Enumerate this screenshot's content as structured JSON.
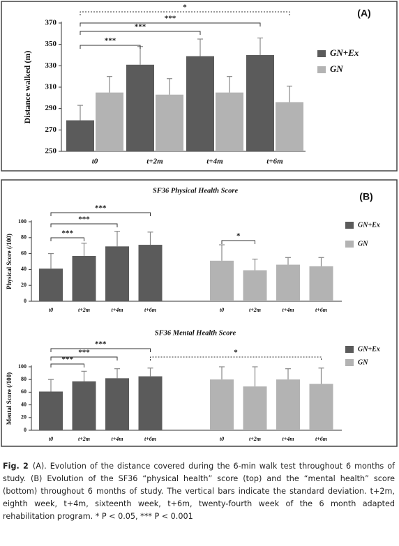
{
  "chart_data": [
    {
      "type": "bar",
      "panel": "(A)",
      "y_label": "Distance walked (m)",
      "categories": [
        "t0",
        "t+2m",
        "t+4m",
        "t+6m"
      ],
      "series": [
        {
          "name": "GN+Ex",
          "color": "#5b5b5b",
          "values": [
            279,
            331,
            339,
            340
          ],
          "errors": [
            14,
            17,
            16,
            16
          ]
        },
        {
          "name": "GN",
          "color": "#b3b3b3",
          "values": [
            305,
            303,
            305,
            296
          ],
          "errors": [
            15,
            15,
            15,
            15
          ]
        }
      ],
      "ylim": [
        250,
        370
      ],
      "yticks": [
        250,
        270,
        290,
        310,
        330,
        350,
        370
      ],
      "annotations": [
        "***",
        "***",
        "***",
        "*"
      ]
    },
    {
      "type": "bar",
      "panel": "(B)",
      "title": "SF36 Physical Health Score",
      "y_label": "Physical Score (/100)",
      "categories": [
        "t0",
        "t+2m",
        "t+4m",
        "t+6m",
        "t0",
        "t+2m",
        "t+4m",
        "t+6m"
      ],
      "series": [
        {
          "name": "GN+Ex",
          "color": "#5b5b5b",
          "values": [
            41,
            57,
            69,
            71,
            null,
            null,
            null,
            null
          ],
          "errors": [
            19,
            16,
            19,
            16,
            null,
            null,
            null,
            null
          ]
        },
        {
          "name": "GN",
          "color": "#b3b3b3",
          "values": [
            null,
            null,
            null,
            null,
            51,
            39,
            46,
            44
          ],
          "errors": [
            null,
            null,
            null,
            null,
            20,
            14,
            9,
            11
          ]
        }
      ],
      "ylim": [
        0,
        100
      ],
      "yticks": [
        0,
        20,
        40,
        60,
        80,
        100
      ],
      "annotations": [
        "***",
        "***",
        "***",
        "*"
      ]
    },
    {
      "type": "bar",
      "title": "SF36 Mental Health Score",
      "y_label": "Mental Score (/100)",
      "categories": [
        "t0",
        "t+2m",
        "t+4m",
        "t+6m",
        "t0",
        "t+2m",
        "t+4m",
        "t+6m"
      ],
      "series": [
        {
          "name": "GN+Ex",
          "color": "#5b5b5b",
          "values": [
            61,
            77,
            82,
            85,
            null,
            null,
            null,
            null
          ],
          "errors": [
            19,
            16,
            15,
            13,
            null,
            null,
            null,
            null
          ]
        },
        {
          "name": "GN",
          "color": "#b3b3b3",
          "values": [
            null,
            null,
            null,
            null,
            80,
            69,
            80,
            73
          ],
          "errors": [
            null,
            null,
            null,
            null,
            20,
            31,
            17,
            25
          ]
        }
      ],
      "ylim": [
        0,
        100
      ],
      "yticks": [
        0,
        20,
        40,
        60,
        80,
        100
      ],
      "annotations": [
        "***",
        "***",
        "***",
        "*"
      ]
    }
  ],
  "caption": {
    "label": "Fig. 2",
    "text": "(A). Evolution of the distance covered during the 6-min walk test throughout 6 months of study. (B) Evolution of the SF36 “physical health” score (top) and the “mental health” score (bottom) throughout 6 months of study. The vertical bars indicate the standard deviation. t+2m, eighth week, t+4m, sixteenth week, t+6m, twenty-fourth week of the 6 month adapted rehabilitation program. * P < 0.05, *** P < 0.001"
  }
}
